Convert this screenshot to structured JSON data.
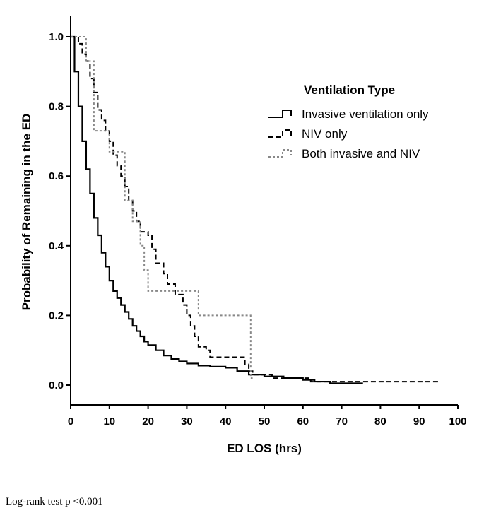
{
  "chart_data": {
    "type": "line",
    "subtype": "kaplan-meier step",
    "xlabel": "ED LOS (hrs)",
    "ylabel": "Probability of Remaining in the ED",
    "xlim": [
      0,
      100
    ],
    "ylim": [
      0,
      1.0
    ],
    "x_ticks": [
      "0",
      "10",
      "20",
      "30",
      "40",
      "50",
      "60",
      "70",
      "80",
      "90",
      "100"
    ],
    "y_ticks": [
      "0.0",
      "0.2",
      "0.4",
      "0.6",
      "0.8",
      "1.0"
    ],
    "legend": {
      "title": "Ventilation Type",
      "position": "top-right"
    },
    "series": [
      {
        "name": "Invasive ventilation only",
        "style": "solid",
        "color": "#000000",
        "points": [
          [
            0,
            1.0
          ],
          [
            1,
            0.9
          ],
          [
            2,
            0.8
          ],
          [
            3,
            0.7
          ],
          [
            4,
            0.62
          ],
          [
            5,
            0.55
          ],
          [
            6,
            0.48
          ],
          [
            7,
            0.43
          ],
          [
            8,
            0.38
          ],
          [
            9,
            0.34
          ],
          [
            10,
            0.3
          ],
          [
            11,
            0.27
          ],
          [
            12,
            0.25
          ],
          [
            13,
            0.23
          ],
          [
            14,
            0.21
          ],
          [
            15,
            0.19
          ],
          [
            16,
            0.17
          ],
          [
            17,
            0.155
          ],
          [
            18,
            0.14
          ],
          [
            19,
            0.125
          ],
          [
            20,
            0.115
          ],
          [
            22,
            0.1
          ],
          [
            24,
            0.085
          ],
          [
            26,
            0.075
          ],
          [
            28,
            0.068
          ],
          [
            30,
            0.062
          ],
          [
            33,
            0.056
          ],
          [
            36,
            0.053
          ],
          [
            40,
            0.05
          ],
          [
            43,
            0.04
          ],
          [
            46,
            0.03
          ],
          [
            50,
            0.025
          ],
          [
            55,
            0.02
          ],
          [
            60,
            0.015
          ],
          [
            63,
            0.01
          ],
          [
            67,
            0.005
          ],
          [
            75.5,
            0.005
          ]
        ]
      },
      {
        "name": "NIV only",
        "style": "dashed",
        "color": "#000000",
        "points": [
          [
            0,
            1.0
          ],
          [
            2,
            0.98
          ],
          [
            3,
            0.95
          ],
          [
            4,
            0.93
          ],
          [
            5,
            0.88
          ],
          [
            6,
            0.84
          ],
          [
            7,
            0.79
          ],
          [
            8,
            0.76
          ],
          [
            9,
            0.73
          ],
          [
            10,
            0.7
          ],
          [
            11,
            0.66
          ],
          [
            12,
            0.63
          ],
          [
            13,
            0.6
          ],
          [
            14,
            0.57
          ],
          [
            15,
            0.53
          ],
          [
            16,
            0.5
          ],
          [
            17,
            0.47
          ],
          [
            18,
            0.44
          ],
          [
            20,
            0.43
          ],
          [
            21,
            0.39
          ],
          [
            22,
            0.35
          ],
          [
            24,
            0.32
          ],
          [
            25,
            0.29
          ],
          [
            27,
            0.26
          ],
          [
            29,
            0.23
          ],
          [
            30,
            0.2
          ],
          [
            31,
            0.17
          ],
          [
            32,
            0.14
          ],
          [
            33,
            0.11
          ],
          [
            35,
            0.1
          ],
          [
            36,
            0.08
          ],
          [
            45,
            0.06
          ],
          [
            46,
            0.04
          ],
          [
            47,
            0.03
          ],
          [
            52,
            0.02
          ],
          [
            60,
            0.02
          ],
          [
            62,
            0.01
          ],
          [
            95.5,
            0.01
          ]
        ]
      },
      {
        "name": "Both invasive and NIV",
        "style": "dotted",
        "color": "#888888",
        "points": [
          [
            0,
            1.0
          ],
          [
            4,
            0.93
          ],
          [
            6,
            0.73
          ],
          [
            10,
            0.67
          ],
          [
            14,
            0.53
          ],
          [
            16,
            0.47
          ],
          [
            18,
            0.4
          ],
          [
            19,
            0.33
          ],
          [
            20,
            0.27
          ],
          [
            28,
            0.27
          ],
          [
            33,
            0.2
          ],
          [
            46.5,
            0.2
          ],
          [
            46.5,
            0.02
          ],
          [
            47,
            0.02
          ]
        ]
      }
    ],
    "annotation": "Log-rank test p <0.001"
  }
}
